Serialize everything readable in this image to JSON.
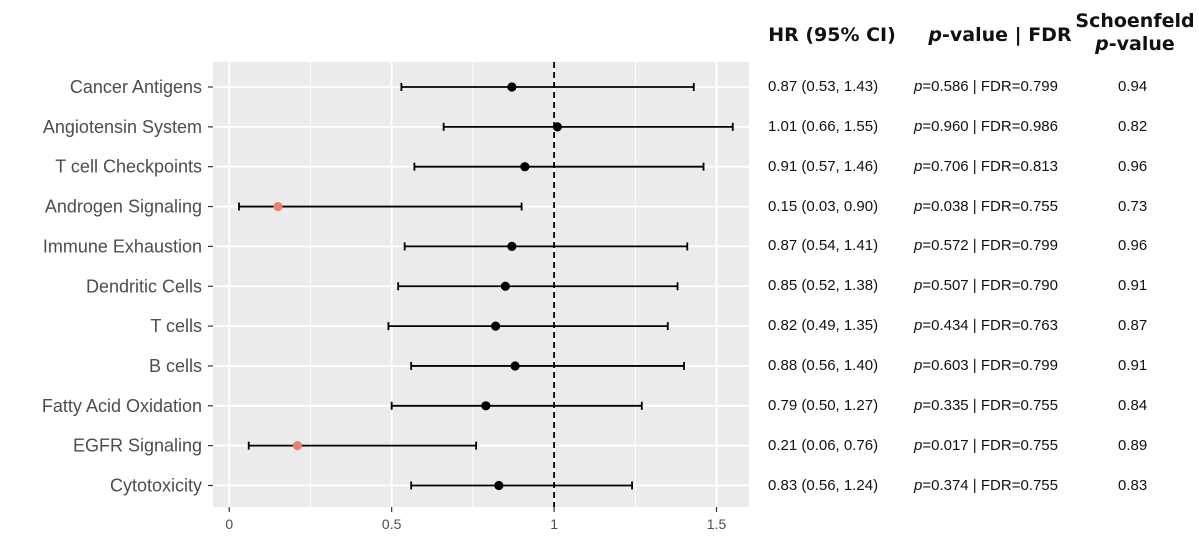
{
  "headers": {
    "hr": "HR (95% CI)",
    "pval_italic": "p",
    "pval_rest": "-value | FDR",
    "schoenfeld_line1": "Schoenfeld",
    "schoenfeld_italic": "p",
    "schoenfeld_rest": "-value"
  },
  "colors": {
    "panel_bg": "#EBEBEB",
    "grid": "#FFFFFF",
    "point_default": "#000000",
    "point_significant": "#E8806E",
    "reference_line": "#000000"
  },
  "chart_data": {
    "type": "forest",
    "xlim": [
      -0.05,
      1.6
    ],
    "xticks": [
      0,
      0.5,
      1,
      1.5
    ],
    "xtick_labels": [
      "0",
      "0.5",
      "1",
      "1.5"
    ],
    "reference_line": 1,
    "reference_line_style": "dashed",
    "grid": true,
    "rows": [
      {
        "label": "Cancer Antigens",
        "hr": 0.87,
        "lo": 0.53,
        "hi": 1.43,
        "hr_text": "0.87 (0.53, 1.43)",
        "p_text": "=0.586 | FDR=0.799",
        "schoenfeld": "0.94",
        "significant": false
      },
      {
        "label": "Angiotensin System",
        "hr": 1.01,
        "lo": 0.66,
        "hi": 1.55,
        "hr_text": "1.01 (0.66, 1.55)",
        "p_text": "=0.960 | FDR=0.986",
        "schoenfeld": "0.82",
        "significant": false
      },
      {
        "label": "T cell Checkpoints",
        "hr": 0.91,
        "lo": 0.57,
        "hi": 1.46,
        "hr_text": "0.91 (0.57, 1.46)",
        "p_text": "=0.706 | FDR=0.813",
        "schoenfeld": "0.96",
        "significant": false
      },
      {
        "label": "Androgen Signaling",
        "hr": 0.15,
        "lo": 0.03,
        "hi": 0.9,
        "hr_text": "0.15 (0.03, 0.90)",
        "p_text": "=0.038 | FDR=0.755",
        "schoenfeld": "0.73",
        "significant": true
      },
      {
        "label": "Immune Exhaustion",
        "hr": 0.87,
        "lo": 0.54,
        "hi": 1.41,
        "hr_text": "0.87 (0.54, 1.41)",
        "p_text": "=0.572 | FDR=0.799",
        "schoenfeld": "0.96",
        "significant": false
      },
      {
        "label": "Dendritic Cells",
        "hr": 0.85,
        "lo": 0.52,
        "hi": 1.38,
        "hr_text": "0.85 (0.52, 1.38)",
        "p_text": "=0.507 | FDR=0.790",
        "schoenfeld": "0.91",
        "significant": false
      },
      {
        "label": "T cells",
        "hr": 0.82,
        "lo": 0.49,
        "hi": 1.35,
        "hr_text": "0.82 (0.49, 1.35)",
        "p_text": "=0.434 | FDR=0.763",
        "schoenfeld": "0.87",
        "significant": false
      },
      {
        "label": "B cells",
        "hr": 0.88,
        "lo": 0.56,
        "hi": 1.4,
        "hr_text": "0.88 (0.56, 1.40)",
        "p_text": "=0.603 | FDR=0.799",
        "schoenfeld": "0.91",
        "significant": false
      },
      {
        "label": "Fatty Acid Oxidation",
        "hr": 0.79,
        "lo": 0.5,
        "hi": 1.27,
        "hr_text": "0.79 (0.50, 1.27)",
        "p_text": "=0.335 | FDR=0.755",
        "schoenfeld": "0.84",
        "significant": false
      },
      {
        "label": "EGFR Signaling",
        "hr": 0.21,
        "lo": 0.06,
        "hi": 0.76,
        "hr_text": "0.21 (0.06, 0.76)",
        "p_text": "=0.017 | FDR=0.755",
        "schoenfeld": "0.89",
        "significant": true
      },
      {
        "label": "Cytotoxicity",
        "hr": 0.83,
        "lo": 0.56,
        "hi": 1.24,
        "hr_text": "0.83 (0.56, 1.24)",
        "p_text": "=0.374 | FDR=0.755",
        "schoenfeld": "0.83",
        "significant": false
      }
    ],
    "p_prefix": "p"
  }
}
